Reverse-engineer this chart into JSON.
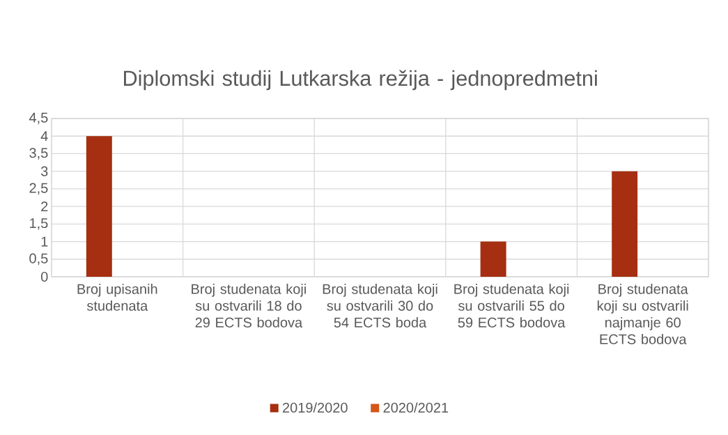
{
  "chart_data": {
    "type": "bar",
    "title": "Diplomski studij Lutkarska režija - jednopredmetni",
    "categories": [
      "Broj upisanih studenata",
      "Broj studenata koji su ostvarili 18 do 29 ECTS bodova",
      "Broj studenata koji su ostvarili 30 do 54 ECTS boda",
      "Broj studenata koji su ostvarili 55 do 59 ECTS bodova",
      "Broj studenata koji su ostvarili najmanje 60 ECTS bodova"
    ],
    "series": [
      {
        "name": "2019/2020",
        "color": "#a52f10",
        "values": [
          4,
          null,
          null,
          1,
          3
        ]
      },
      {
        "name": "2020/2021",
        "color": "#d4561a",
        "values": [
          null,
          null,
          null,
          null,
          null
        ]
      }
    ],
    "ylim": [
      0,
      4.5
    ],
    "yticks": [
      0,
      {
        "value": 0.5,
        "label": "0,5"
      },
      1,
      {
        "value": 1.5,
        "label": "1,5"
      },
      2,
      {
        "value": 2.5,
        "label": "2,5"
      },
      3,
      {
        "value": 3.5,
        "label": "3,5"
      },
      4,
      {
        "value": 4.5,
        "label": "4,5"
      }
    ],
    "grid": true,
    "legend": "bottom"
  }
}
